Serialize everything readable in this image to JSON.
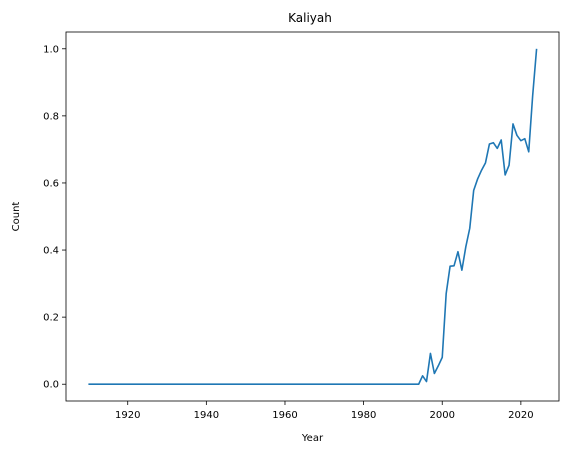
{
  "chart_data": {
    "type": "line",
    "title": "Kaliyah",
    "xlabel": "Year",
    "ylabel": "Count",
    "xlim": [
      1904.3,
      2029.7
    ],
    "ylim": [
      -0.05,
      1.05
    ],
    "grid": false,
    "xticks": [
      1920,
      1940,
      1960,
      1980,
      2000,
      2020
    ],
    "xtick_labels": [
      "1920",
      "1940",
      "1960",
      "1980",
      "2000",
      "2020"
    ],
    "yticks": [
      0.0,
      0.2,
      0.4,
      0.6,
      0.8,
      1.0
    ],
    "ytick_labels": [
      "0.0",
      "0.2",
      "0.4",
      "0.6",
      "0.8",
      "1.0"
    ],
    "series": [
      {
        "color": "#1f77b4",
        "x": [
          1910,
          1994,
          1995,
          1996,
          1997,
          1998,
          1999,
          2000,
          2001,
          2002,
          2003,
          2004,
          2005,
          2006,
          2007,
          2008,
          2009,
          2010,
          2011,
          2012,
          2013,
          2014,
          2015,
          2016,
          2017,
          2018,
          2019,
          2020,
          2021,
          2022,
          2023,
          2024
        ],
        "y": [
          0.0,
          0.0,
          0.025,
          0.008,
          0.092,
          0.032,
          0.055,
          0.08,
          0.27,
          0.352,
          0.353,
          0.395,
          0.34,
          0.41,
          0.465,
          0.578,
          0.612,
          0.638,
          0.66,
          0.716,
          0.72,
          0.703,
          0.728,
          0.624,
          0.653,
          0.776,
          0.742,
          0.726,
          0.732,
          0.693,
          0.86,
          1.0
        ]
      }
    ]
  }
}
